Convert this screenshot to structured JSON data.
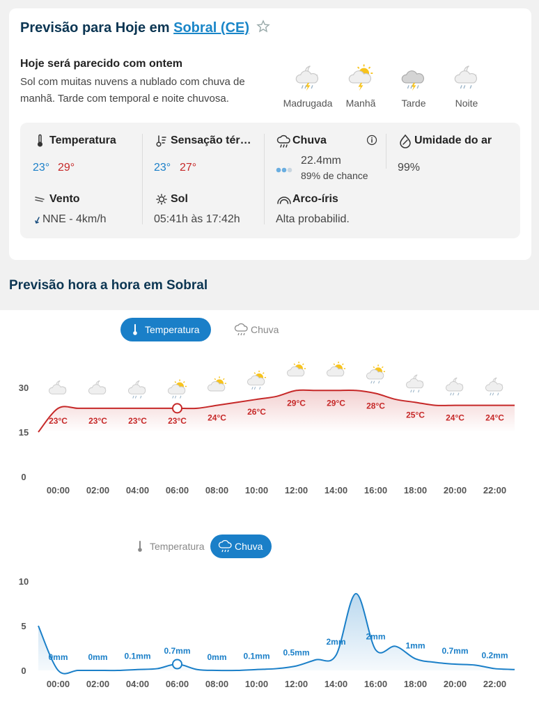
{
  "header": {
    "title": "Previsão para Hoje em",
    "location": "Sobral (CE)"
  },
  "summary": {
    "title": "Hoje será parecido com ontem",
    "text": "Sol com muitas nuvens a nublado com chuva de manhã. Tarde com temporal e noite chuvosa."
  },
  "periods": [
    "Madrugada",
    "Manhã",
    "Tarde",
    "Noite"
  ],
  "details": [
    {
      "label": "Temperatura",
      "values": [
        "23°",
        "29°"
      ]
    },
    {
      "label": "Sensação tér…",
      "values": [
        "23°",
        "27°"
      ]
    },
    {
      "label": "Chuva",
      "values": [
        "22.4mm",
        "89% de chance"
      ]
    },
    {
      "label": "Umidade do ar",
      "values": [
        "99%"
      ]
    },
    {
      "label": "Vento",
      "values": [
        "NNE - 4km/h"
      ]
    },
    {
      "label": "Sol",
      "values": [
        "05:41h às 17:42h"
      ]
    },
    {
      "label": "Arco-íris",
      "values": [
        "Alta probabilid."
      ]
    }
  ],
  "hourly_title": "Previsão hora a hora em Sobral",
  "chart_data": [
    {
      "type": "line",
      "tabs": [
        {
          "label": "Temperatura",
          "active": true
        },
        {
          "label": "Chuva",
          "active": false
        }
      ],
      "categories": [
        null,
        "00:00",
        null,
        "02:00",
        null,
        "04:00",
        null,
        "06:00",
        null,
        "08:00",
        null,
        "10:00",
        null,
        "12:00",
        null,
        "14:00",
        null,
        "16:00",
        null,
        "18:00",
        null,
        "20:00",
        null,
        "22:00",
        null
      ],
      "series": [
        {
          "color": "#c62828",
          "values": [
            15,
            23,
            23,
            23,
            23,
            23,
            23,
            23,
            23,
            24,
            25,
            26,
            27,
            29,
            29,
            29,
            29,
            28,
            26,
            25,
            24,
            24,
            24,
            24,
            24
          ],
          "value_labels": [
            null,
            "23°C",
            null,
            "23°C",
            null,
            "23°C",
            null,
            "23°C",
            null,
            "24°C",
            null,
            "26°C",
            null,
            "29°C",
            null,
            "29°C",
            null,
            "28°C",
            null,
            "25°C",
            null,
            "24°C",
            null,
            "24°C",
            null
          ]
        }
      ],
      "ylim": [
        0,
        30
      ],
      "yticks": [
        0,
        15,
        30
      ],
      "grid": false,
      "highlight_index": 7
    },
    {
      "type": "line",
      "tabs": [
        {
          "label": "Temperatura",
          "active": false
        },
        {
          "label": "Chuva",
          "active": true
        }
      ],
      "categories": [
        null,
        "00:00",
        null,
        "02:00",
        null,
        "04:00",
        null,
        "06:00",
        null,
        "08:00",
        null,
        "10:00",
        null,
        "12:00",
        null,
        "14:00",
        null,
        "16:00",
        null,
        "18:00",
        null,
        "20:00",
        null,
        "22:00",
        null
      ],
      "series": [
        {
          "color": "#1a7fc8",
          "values": [
            5,
            0,
            0,
            0,
            0,
            0.1,
            0.2,
            0.7,
            0.1,
            0,
            0,
            0.1,
            0.2,
            0.5,
            1.2,
            1.7,
            8.6,
            2.3,
            2.7,
            1.3,
            0.9,
            0.7,
            0.6,
            0.2,
            0.1
          ],
          "value_labels": [
            null,
            "0mm",
            null,
            "0mm",
            null,
            "0.1mm",
            null,
            "0.7mm",
            null,
            "0mm",
            null,
            "0.1mm",
            null,
            "0.5mm",
            null,
            "2mm",
            null,
            "2mm",
            null,
            "1mm",
            null,
            "0.7mm",
            null,
            "0.2mm",
            null
          ]
        }
      ],
      "ylim": [
        0,
        10
      ],
      "yticks": [
        0,
        5,
        10
      ],
      "grid": false,
      "highlight_index": 7
    }
  ]
}
